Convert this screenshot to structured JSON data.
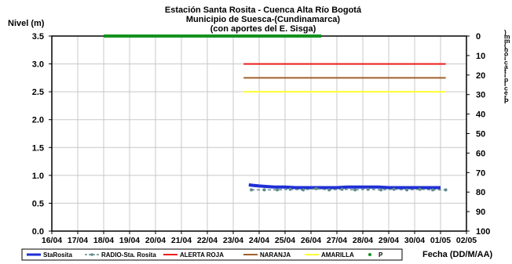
{
  "chart_data": {
    "type": "line",
    "title_lines": [
      "Estación Santa Rosita - Cuenca Alta Río Bogotá",
      "Municipio de Suesca-(Cundinamarca)",
      "(con aportes del  E. Sisga)"
    ],
    "ylabel": "Nivel (m)",
    "xlabel": "Fecha (DD/M/AA)",
    "y2label_chars": [
      ")",
      "m",
      "m",
      "(",
      "n",
      "ó",
      "i",
      "c",
      "a",
      "t",
      "i",
      "p",
      "i",
      "c",
      "e",
      "r",
      "P"
    ],
    "ylim": [
      0,
      3.5
    ],
    "y_ticks": [
      0.0,
      0.5,
      1.0,
      1.5,
      2.0,
      2.5,
      3.0,
      3.5
    ],
    "y_tick_labels": [
      "0.0",
      "0.5",
      "1.0",
      "1.5",
      "2.0",
      "2.5",
      "3.0",
      "3.5"
    ],
    "y2lim": [
      0,
      100
    ],
    "y2_ticks": [
      0,
      10,
      20,
      30,
      40,
      50,
      60,
      70,
      80,
      90,
      100
    ],
    "y2_tick_labels": [
      "0",
      "10",
      "20",
      "30",
      "40",
      "50",
      "60",
      "70",
      "80",
      "90",
      "100"
    ],
    "y2_inverted": true,
    "x_ticks": [
      16,
      17,
      18,
      19,
      20,
      21,
      22,
      23,
      24,
      25,
      26,
      27,
      28,
      29,
      30,
      31,
      32
    ],
    "x_tick_labels": [
      "16/04",
      "17/04",
      "18/04",
      "19/04",
      "20/04",
      "21/04",
      "22/04",
      "23/04",
      "24/04",
      "25/04",
      "26/04",
      "27/04",
      "28/04",
      "29/04",
      "30/04",
      "01/05",
      "02/05"
    ],
    "xlim": [
      16,
      32
    ],
    "grid": true,
    "legend_placement": "bottom",
    "legend": [
      "StaRosita",
      "RADIO-Sta. Rosita",
      "ALERTA ROJA",
      "NARANJA",
      "AMARILLA",
      "P"
    ],
    "series": [
      {
        "name": "StaRosita",
        "color": "#1f2fd6",
        "style": "thick-line",
        "axis": "left",
        "x": [
          23.6,
          23.8,
          24.0,
          24.3,
          24.6,
          25.0,
          25.4,
          25.8,
          26.2,
          26.6,
          27.0,
          27.4,
          27.8,
          28.2,
          28.6,
          29.0,
          29.4,
          29.8,
          30.2,
          30.6,
          31.0
        ],
        "y": [
          0.83,
          0.82,
          0.81,
          0.8,
          0.79,
          0.79,
          0.78,
          0.78,
          0.78,
          0.78,
          0.78,
          0.79,
          0.79,
          0.79,
          0.79,
          0.78,
          0.78,
          0.78,
          0.78,
          0.78,
          0.78
        ]
      },
      {
        "name": "RADIO-Sta. Rosita",
        "color": "#5f8a8b",
        "style": "dashed-markers",
        "axis": "left",
        "x": [
          23.7,
          24.2,
          24.7,
          25.2,
          25.7,
          26.2,
          26.7,
          27.2,
          27.7,
          28.2,
          28.7,
          29.2,
          29.7,
          30.2,
          30.7,
          31.2
        ],
        "y": [
          0.74,
          0.74,
          0.74,
          0.75,
          0.74,
          0.76,
          0.74,
          0.75,
          0.74,
          0.75,
          0.74,
          0.75,
          0.74,
          0.75,
          0.74,
          0.74
        ]
      },
      {
        "name": "ALERTA ROJA",
        "color": "#ee1c1c",
        "axis": "left",
        "x": [
          23.4,
          31.2
        ],
        "y": [
          3.0,
          3.0
        ]
      },
      {
        "name": "NARANJA",
        "color": "#a0612a",
        "axis": "left",
        "x": [
          23.4,
          31.2
        ],
        "y": [
          2.75,
          2.75
        ]
      },
      {
        "name": "AMARILLA",
        "color": "#ffff33",
        "axis": "left",
        "x": [
          23.4,
          31.2
        ],
        "y": [
          2.5,
          2.5
        ]
      },
      {
        "name": "P",
        "color": "#14911f",
        "axis": "right",
        "style": "thick-line",
        "x": [
          18.0,
          26.4
        ],
        "y": [
          0,
          0
        ]
      }
    ]
  }
}
